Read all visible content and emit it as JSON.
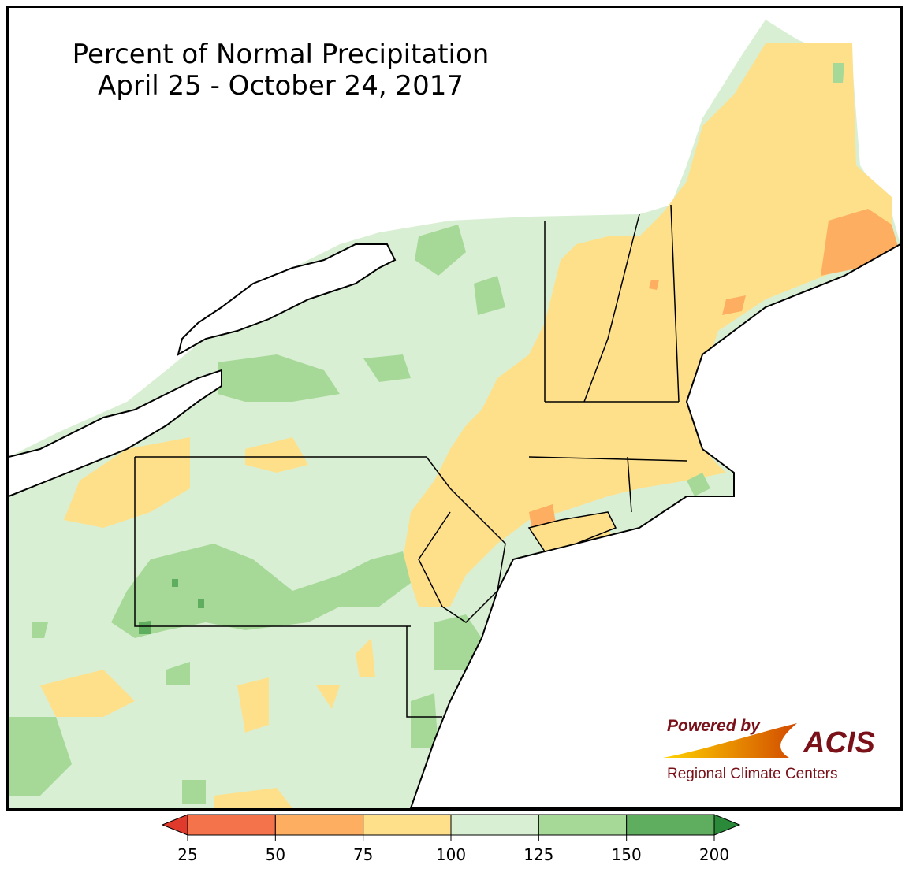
{
  "title": {
    "line1": "Percent of Normal Precipitation",
    "line2": "April 25 - October 24, 2017"
  },
  "logo": {
    "powered_by": "Powered by",
    "brand": "ACIS",
    "subtitle": "Regional Climate Centers",
    "colors": {
      "text": "#7a1018",
      "swoosh_start": "#ffd400",
      "swoosh_end": "#d24a00"
    }
  },
  "legend": {
    "ticks": [
      "25",
      "50",
      "75",
      "100",
      "125",
      "150",
      "200"
    ],
    "bins": [
      {
        "from": 0,
        "to": 25,
        "color": "#e03a2c",
        "extend": "min"
      },
      {
        "from": 25,
        "to": 50,
        "color": "#f4734a"
      },
      {
        "from": 50,
        "to": 75,
        "color": "#fdae61"
      },
      {
        "from": 75,
        "to": 100,
        "color": "#fee08b"
      },
      {
        "from": 100,
        "to": 125,
        "color": "#d9efd3"
      },
      {
        "from": 125,
        "to": 150,
        "color": "#a6d998"
      },
      {
        "from": 150,
        "to": 200,
        "color": "#5fae5f"
      },
      {
        "from": 200,
        "to": 999,
        "color": "#2a8a3a",
        "extend": "max"
      }
    ]
  },
  "map": {
    "background_color": "#d9efd3",
    "water_color": "#ffffff",
    "border_color": "#000000"
  }
}
